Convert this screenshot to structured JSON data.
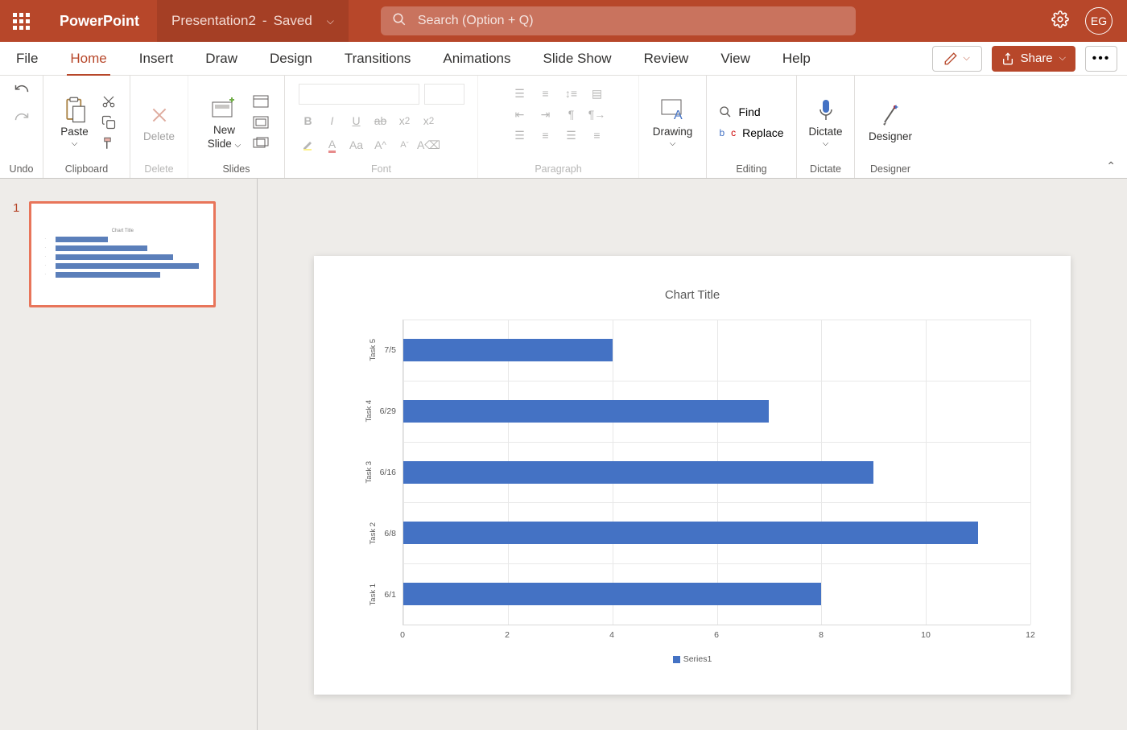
{
  "title": {
    "app_name": "PowerPoint",
    "doc_name": "Presentation2",
    "doc_status": "Saved",
    "search_placeholder": "Search (Option + Q)",
    "user_initials": "EG"
  },
  "tabs": {
    "file": "File",
    "home": "Home",
    "insert": "Insert",
    "draw": "Draw",
    "design": "Design",
    "transitions": "Transitions",
    "animations": "Animations",
    "slideshow": "Slide Show",
    "review": "Review",
    "view": "View",
    "help": "Help",
    "share": "Share"
  },
  "ribbon": {
    "undo": "Undo",
    "paste": "Paste",
    "clipboard": "Clipboard",
    "delete": "Delete",
    "delete_grp": "Delete",
    "new_slide": "New",
    "new_slide2": "Slide",
    "slides": "Slides",
    "font": "Font",
    "paragraph": "Paragraph",
    "drawing": "Drawing",
    "find": "Find",
    "replace": "Replace",
    "editing": "Editing",
    "dictate": "Dictate",
    "dictate_grp": "Dictate",
    "designer": "Designer",
    "designer_grp": "Designer"
  },
  "thumb": {
    "number": "1"
  },
  "chart": {
    "title": "Chart Title",
    "type": "bar-horizontal",
    "xlim": [
      0,
      12
    ],
    "xtick_step": 2,
    "xticks": [
      0,
      2,
      4,
      6,
      8,
      10,
      12
    ],
    "bar_color": "#4472c4",
    "grid_color": "#e8e8e8",
    "rows": [
      {
        "task": "Task 5",
        "date": "7/5",
        "value": 4
      },
      {
        "task": "Task 4",
        "date": "6/29",
        "value": 7
      },
      {
        "task": "Task 3",
        "date": "6/16",
        "value": 9
      },
      {
        "task": "Task 2",
        "date": "6/8",
        "value": 11
      },
      {
        "task": "Task 1",
        "date": "6/1",
        "value": 8
      }
    ],
    "legend_label": "Series1"
  }
}
